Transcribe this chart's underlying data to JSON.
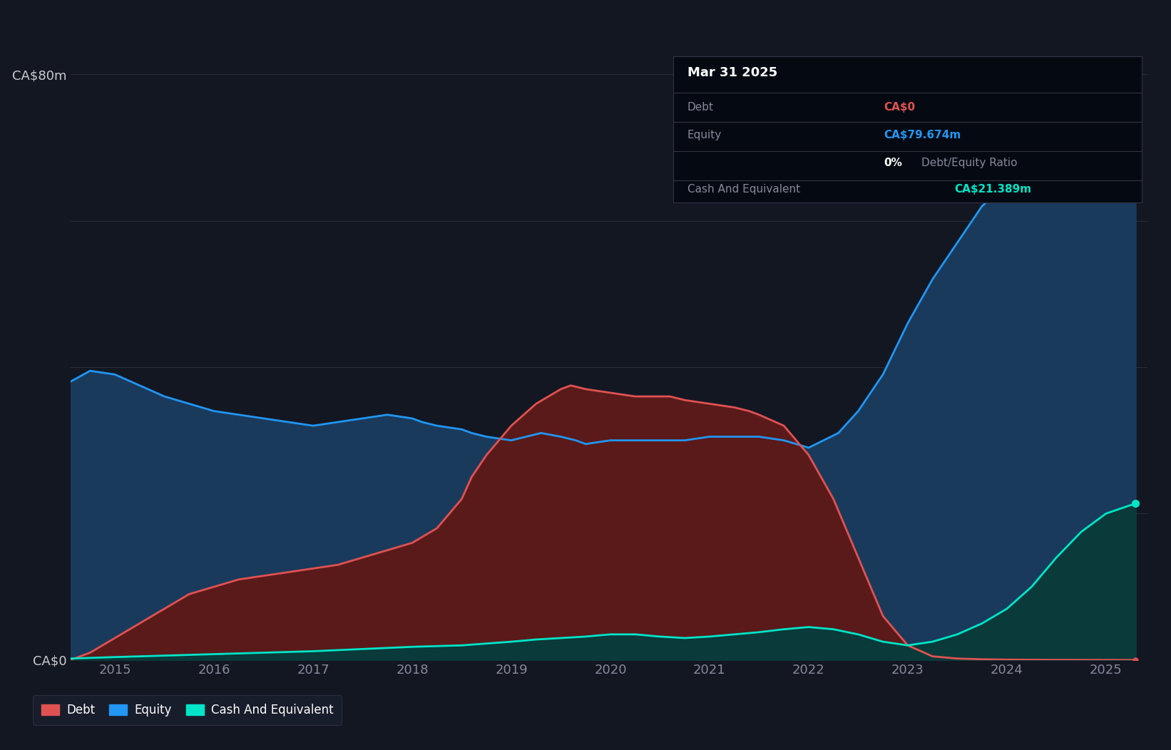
{
  "bg_color": "#131722",
  "chart_bg": "#131c2e",
  "grid_color": "#2a2e39",
  "equity_color": "#2196f3",
  "debt_color": "#e05252",
  "cash_color": "#00e5c8",
  "equity_fill": "#1a3a5c",
  "debt_fill": "#5a1a1a",
  "cash_fill": "#0a3a3a",
  "tooltip_bg": "#050a12",
  "tooltip_title": "Mar 31 2025",
  "tooltip_debt_label": "Debt",
  "tooltip_debt_value": "CA$0",
  "tooltip_equity_label": "Equity",
  "tooltip_equity_value": "CA$79.674m",
  "tooltip_ratio_bold": "0%",
  "tooltip_ratio_text": "Debt/Equity Ratio",
  "tooltip_cash_label": "Cash And Equivalent",
  "tooltip_cash_value": "CA$21.389m",
  "ylabel_ca80": "CA$80m",
  "ylabel_ca0": "CA$0",
  "ylim_max": 84000000,
  "xlim_start": 2014.55,
  "xlim_end": 2025.42,
  "equity_x": [
    2014.55,
    2014.75,
    2015.0,
    2015.25,
    2015.5,
    2015.75,
    2016.0,
    2016.25,
    2016.5,
    2016.75,
    2017.0,
    2017.25,
    2017.5,
    2017.75,
    2018.0,
    2018.1,
    2018.25,
    2018.5,
    2018.6,
    2018.75,
    2019.0,
    2019.15,
    2019.3,
    2019.5,
    2019.65,
    2019.75,
    2020.0,
    2020.25,
    2020.5,
    2020.75,
    2021.0,
    2021.25,
    2021.5,
    2021.75,
    2022.0,
    2022.15,
    2022.3,
    2022.5,
    2022.75,
    2023.0,
    2023.25,
    2023.5,
    2023.75,
    2024.0,
    2024.25,
    2024.5,
    2024.75,
    2025.0,
    2025.3
  ],
  "equity_y": [
    38,
    39.5,
    39,
    37.5,
    36,
    35,
    34,
    33.5,
    33,
    32.5,
    32,
    32.5,
    33,
    33.5,
    33,
    32.5,
    32,
    31.5,
    31,
    30.5,
    30,
    30.5,
    31,
    30.5,
    30,
    29.5,
    30,
    30,
    30,
    30,
    30.5,
    30.5,
    30.5,
    30,
    29,
    30,
    31,
    34,
    39,
    46,
    52,
    57,
    62,
    65,
    68,
    71,
    74,
    78,
    79.674
  ],
  "debt_x": [
    2014.55,
    2014.75,
    2015.0,
    2015.25,
    2015.5,
    2015.75,
    2016.0,
    2016.25,
    2016.5,
    2016.75,
    2017.0,
    2017.25,
    2017.5,
    2017.75,
    2018.0,
    2018.25,
    2018.5,
    2018.6,
    2018.75,
    2019.0,
    2019.25,
    2019.5,
    2019.6,
    2019.75,
    2020.0,
    2020.25,
    2020.5,
    2020.6,
    2020.75,
    2021.0,
    2021.25,
    2021.4,
    2021.5,
    2021.75,
    2022.0,
    2022.25,
    2022.5,
    2022.75,
    2023.0,
    2023.25,
    2023.5,
    2023.75,
    2024.0,
    2024.5,
    2025.0,
    2025.3
  ],
  "debt_y": [
    0,
    1,
    3,
    5,
    7,
    9,
    10,
    11,
    11.5,
    12,
    12.5,
    13,
    14,
    15,
    16,
    18,
    22,
    25,
    28,
    32,
    35,
    37,
    37.5,
    37,
    36.5,
    36,
    36,
    36,
    35.5,
    35,
    34.5,
    34,
    33.5,
    32,
    28,
    22,
    14,
    6,
    2,
    0.5,
    0.2,
    0.1,
    0.05,
    0.02,
    0.01,
    0
  ],
  "cash_x": [
    2014.55,
    2015.0,
    2015.5,
    2016.0,
    2016.5,
    2017.0,
    2017.5,
    2018.0,
    2018.5,
    2019.0,
    2019.25,
    2019.5,
    2019.75,
    2020.0,
    2020.25,
    2020.5,
    2020.75,
    2021.0,
    2021.25,
    2021.5,
    2021.75,
    2022.0,
    2022.25,
    2022.5,
    2022.75,
    2023.0,
    2023.25,
    2023.5,
    2023.75,
    2024.0,
    2024.25,
    2024.5,
    2024.75,
    2025.0,
    2025.3
  ],
  "cash_y": [
    0.2,
    0.4,
    0.6,
    0.8,
    1.0,
    1.2,
    1.5,
    1.8,
    2.0,
    2.5,
    2.8,
    3.0,
    3.2,
    3.5,
    3.5,
    3.2,
    3.0,
    3.2,
    3.5,
    3.8,
    4.2,
    4.5,
    4.2,
    3.5,
    2.5,
    2.0,
    2.5,
    3.5,
    5.0,
    7.0,
    10.0,
    14.0,
    17.5,
    20.0,
    21.389
  ]
}
